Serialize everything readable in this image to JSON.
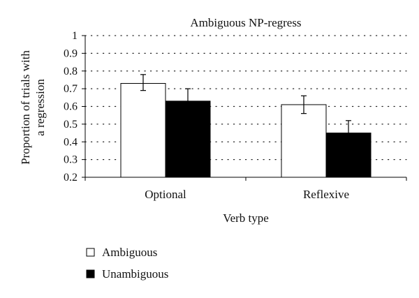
{
  "chart_data": {
    "type": "bar",
    "title": "Ambiguous NP-regress",
    "xlabel": "Verb type",
    "ylabel_lines": [
      "Proportion of trials with",
      "a regression"
    ],
    "categories": [
      "Optional",
      "Reflexive"
    ],
    "ylim": [
      0.2,
      1.0
    ],
    "yticks": [
      "0.2",
      "0.3",
      "0.4",
      "0.5",
      "0.6",
      "0.7",
      "0.8",
      "0.9",
      "1"
    ],
    "grid": "dotted horizontal",
    "legend_position": "bottom-left",
    "series": [
      {
        "name": "Ambiguous",
        "color": "#ffffff",
        "values": [
          0.73,
          0.61
        ],
        "error_low": [
          0.69,
          0.56
        ],
        "error_high": [
          0.78,
          0.66
        ]
      },
      {
        "name": "Unambiguous",
        "color": "#000000",
        "values": [
          0.63,
          0.45
        ],
        "error_low": [
          0.56,
          0.39
        ],
        "error_high": [
          0.7,
          0.52
        ]
      }
    ]
  }
}
